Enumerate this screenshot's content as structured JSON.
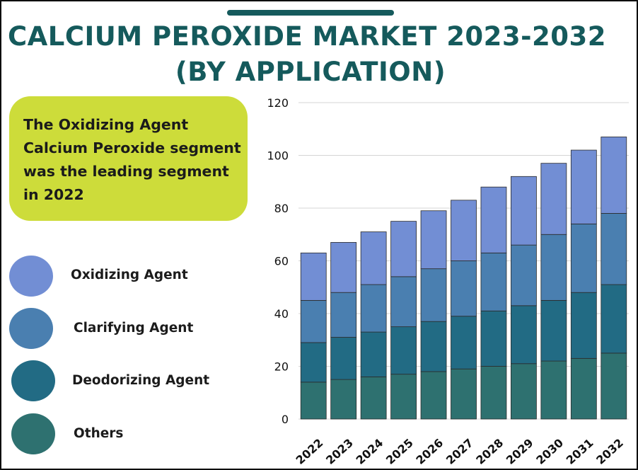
{
  "title": {
    "line1": "CALCIUM PEROXIDE MARKET 2023-2032",
    "line2": "(BY APPLICATION)"
  },
  "callout": {
    "text": "The Oxidizing Agent Calcium Peroxide segment was the leading segment in 2022"
  },
  "legend": [
    {
      "label": "Oxidizing Agent",
      "color": "#728ed4"
    },
    {
      "label": "Clarifying Agent",
      "color": "#4a7fb0"
    },
    {
      "label": "Deodorizing Agent",
      "color": "#226b84"
    },
    {
      "label": "Others",
      "color": "#2e7170"
    }
  ],
  "colors": {
    "title": "#155a5c",
    "callout_bg": "#cddc3a",
    "grid": "#d5d5d5"
  },
  "chart_data": {
    "type": "bar",
    "stacked": true,
    "categories": [
      "2022",
      "2023",
      "2024",
      "2025",
      "2026",
      "2027",
      "2028",
      "2029",
      "2030",
      "2031",
      "2032"
    ],
    "series": [
      {
        "name": "Others",
        "color": "#2e7170",
        "values": [
          14,
          15,
          16,
          17,
          18,
          19,
          20,
          21,
          22,
          23,
          25
        ]
      },
      {
        "name": "Deodorizing Agent",
        "color": "#226b84",
        "values": [
          15,
          16,
          17,
          18,
          19,
          20,
          21,
          22,
          23,
          25,
          26
        ]
      },
      {
        "name": "Clarifying Agent",
        "color": "#4a7fb0",
        "values": [
          16,
          17,
          18,
          19,
          20,
          21,
          22,
          23,
          25,
          26,
          27
        ]
      },
      {
        "name": "Oxidizing Agent",
        "color": "#728ed4",
        "values": [
          18,
          19,
          20,
          21,
          22,
          23,
          25,
          26,
          27,
          28,
          29
        ]
      }
    ],
    "totals": [
      63,
      67,
      71,
      75,
      79,
      83,
      88,
      92,
      97,
      102,
      107
    ],
    "yticks": [
      0,
      20,
      40,
      60,
      80,
      100,
      120
    ],
    "ylim": [
      0,
      120
    ],
    "grid": true,
    "legend_position": "left"
  }
}
